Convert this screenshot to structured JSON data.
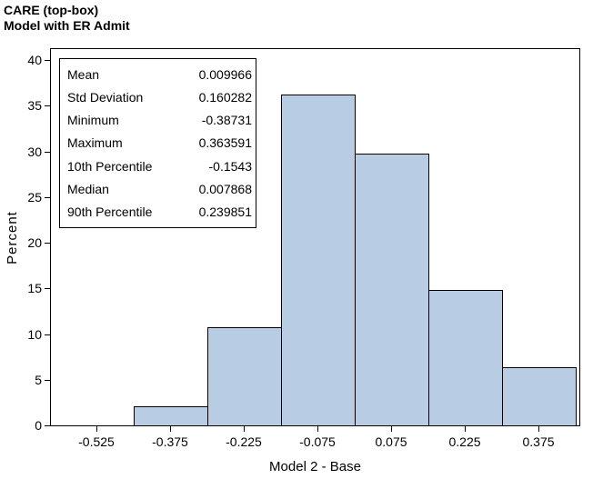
{
  "title": {
    "line1": "CARE (top-box)",
    "line2": "Model with ER Admit"
  },
  "stats_box": {
    "rows": [
      {
        "label": "Mean",
        "value": "0.009966"
      },
      {
        "label": "Std Deviation",
        "value": "0.160282"
      },
      {
        "label": "Minimum",
        "value": "-0.38731"
      },
      {
        "label": "Maximum",
        "value": "0.363591"
      },
      {
        "label": "10th Percentile",
        "value": "-0.1543"
      },
      {
        "label": "Median",
        "value": "0.007868"
      },
      {
        "label": "90th Percentile",
        "value": "0.239851"
      }
    ]
  },
  "chart_data": {
    "type": "bar",
    "subtype": "histogram",
    "title": "CARE (top-box) — Model with ER Admit",
    "xlabel": "Model 2 - Base",
    "ylabel": "Percent",
    "bin_midpoints": [
      -0.525,
      -0.375,
      -0.225,
      -0.075,
      0.075,
      0.225,
      0.375
    ],
    "bin_width": 0.15,
    "values": [
      0,
      2.1,
      10.7,
      36.2,
      29.8,
      14.8,
      6.4
    ],
    "xticks": [
      "-0.525",
      "-0.375",
      "-0.225",
      "-0.075",
      "0.075",
      "0.225",
      "0.375"
    ],
    "yticks": [
      0,
      5,
      10,
      15,
      20,
      25,
      30,
      35,
      40
    ],
    "ylim": [
      0,
      41.2
    ],
    "grid": false,
    "legend": "none",
    "bar_fill_color": "#b8cde4",
    "bar_border_color": "#000000",
    "frame_color": "#000000",
    "text_color": "#000000"
  }
}
